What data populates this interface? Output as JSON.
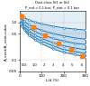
{
  "chart_data": {
    "type": "line",
    "xlabel": "L/d (%)",
    "ylabel": "A_vent/A_vent,cubic",
    "log": "y",
    "grid": true,
    "xlim": [
      0,
      300
    ],
    "ylim": [
      0.05,
      2.0
    ],
    "xticks": [
      0,
      100,
      200,
      300
    ],
    "yticks": [
      0.05,
      0.1,
      0.5,
      {
        "value": 1.0,
        "label": "1.0"
      }
    ],
    "series_label_heading": "L/D:",
    "annotations": [
      "Dust class St1 or St2",
      "P_red = 0.1 bar; P_stat = 0.1 bar"
    ],
    "series": [
      {
        "name": "1.0",
        "marker": "o",
        "x": [
          0,
          5,
          10,
          20,
          40,
          70,
          100,
          150,
          200,
          250,
          300
        ],
        "values": [
          1.75,
          1.6,
          1.5,
          1.35,
          1.18,
          1.02,
          0.92,
          0.8,
          0.72,
          0.67,
          0.63
        ]
      },
      {
        "name": "2",
        "marker": "o",
        "x": [
          0,
          5,
          10,
          20,
          40,
          70,
          100,
          150,
          200,
          250,
          300
        ],
        "values": [
          1.6,
          1.38,
          1.25,
          1.08,
          0.88,
          0.72,
          0.62,
          0.51,
          0.44,
          0.39,
          0.36
        ]
      },
      {
        "name": "3",
        "marker": "o",
        "x": [
          0,
          5,
          10,
          20,
          40,
          70,
          100,
          150,
          200,
          250,
          300
        ],
        "values": [
          1.47,
          1.22,
          1.08,
          0.9,
          0.72,
          0.57,
          0.48,
          0.38,
          0.32,
          0.28,
          0.26
        ]
      },
      {
        "name": "4",
        "marker": "o",
        "x": [
          0,
          5,
          10,
          20,
          40,
          70,
          100,
          150,
          200,
          250,
          300
        ],
        "values": [
          1.36,
          1.1,
          0.96,
          0.78,
          0.6,
          0.46,
          0.38,
          0.29,
          0.24,
          0.21,
          0.19
        ]
      },
      {
        "name": "5",
        "marker": "o",
        "x": [
          0,
          5,
          10,
          20,
          40,
          70,
          100,
          150,
          200,
          250,
          300
        ],
        "values": [
          1.27,
          1.0,
          0.86,
          0.69,
          0.52,
          0.39,
          0.32,
          0.24,
          0.19,
          0.17,
          0.15
        ]
      },
      {
        "name": "6",
        "marker": "o",
        "x": [
          0,
          5,
          10,
          20,
          40,
          70,
          100,
          150,
          200,
          250,
          300
        ],
        "values": [
          1.18,
          0.92,
          0.78,
          0.62,
          0.46,
          0.34,
          0.27,
          0.2,
          0.16,
          0.14,
          0.12
        ]
      },
      {
        "type": "scatter",
        "marker": "s",
        "x": [
          8,
          60,
          115,
          175,
          235,
          285
        ],
        "values": [
          1.5,
          0.74,
          0.46,
          0.28,
          0.19,
          0.13
        ]
      }
    ]
  }
}
